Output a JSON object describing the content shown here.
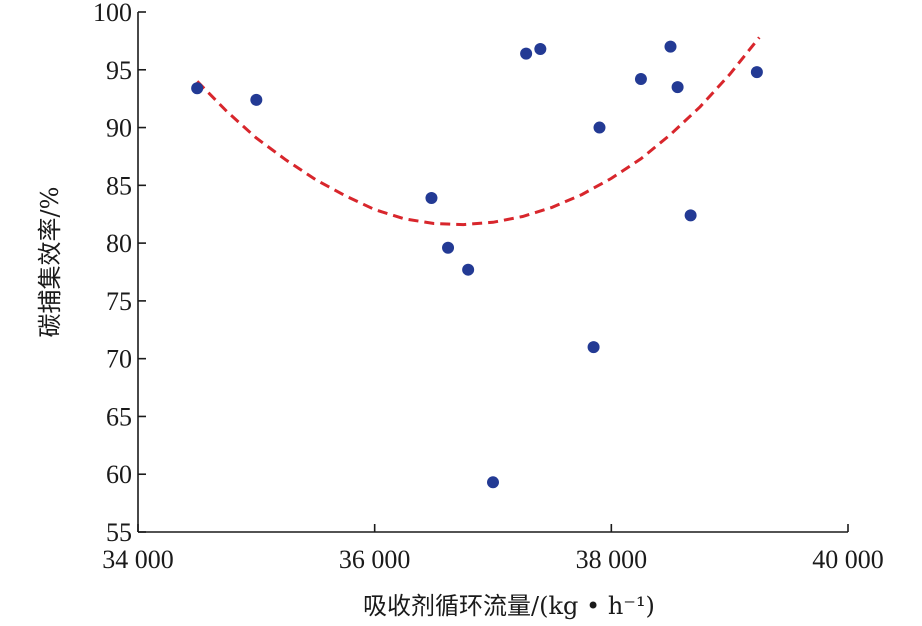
{
  "chart_data": {
    "type": "scatter",
    "title": "",
    "xlabel": "吸收剂循环流量/(kg • h⁻¹)",
    "ylabel": "碳捕集效率/%",
    "xlim": [
      34000,
      40000
    ],
    "ylim": [
      55,
      100
    ],
    "x_ticks": [
      34000,
      36000,
      38000,
      40000
    ],
    "x_tick_labels": [
      "34 000",
      "36 000",
      "38 000",
      "40 000"
    ],
    "y_ticks": [
      55,
      60,
      65,
      70,
      75,
      80,
      85,
      90,
      95,
      100
    ],
    "y_tick_labels": [
      "55",
      "60",
      "65",
      "70",
      "75",
      "80",
      "85",
      "90",
      "95",
      "100"
    ],
    "grid": false,
    "colors": {
      "points": "#233a94",
      "fit": "#d8262c",
      "axis": "#1a1a1a"
    },
    "series": [
      {
        "kind": "points",
        "x": [
          34500,
          35000,
          36480,
          36620,
          36790,
          37000,
          37280,
          37400,
          37850,
          37900,
          38250,
          38500,
          38560,
          38670,
          39230
        ],
        "y": [
          93.4,
          92.4,
          83.9,
          79.6,
          77.7,
          59.3,
          96.4,
          96.8,
          71.0,
          90.0,
          94.2,
          97.0,
          93.5,
          82.4,
          94.8
        ]
      },
      {
        "kind": "fit-curve",
        "style": "dashed",
        "x": [
          34500,
          34750,
          35000,
          35250,
          35500,
          35750,
          36000,
          36250,
          36500,
          36750,
          37000,
          37250,
          37500,
          37750,
          38000,
          38250,
          38500,
          38750,
          39000,
          39250
        ],
        "y": [
          94.0,
          91.4,
          89.1,
          87.2,
          85.5,
          84.1,
          82.9,
          82.1,
          81.7,
          81.6,
          81.8,
          82.3,
          83.1,
          84.2,
          85.6,
          87.3,
          89.4,
          91.8,
          94.6,
          97.8
        ]
      }
    ]
  }
}
